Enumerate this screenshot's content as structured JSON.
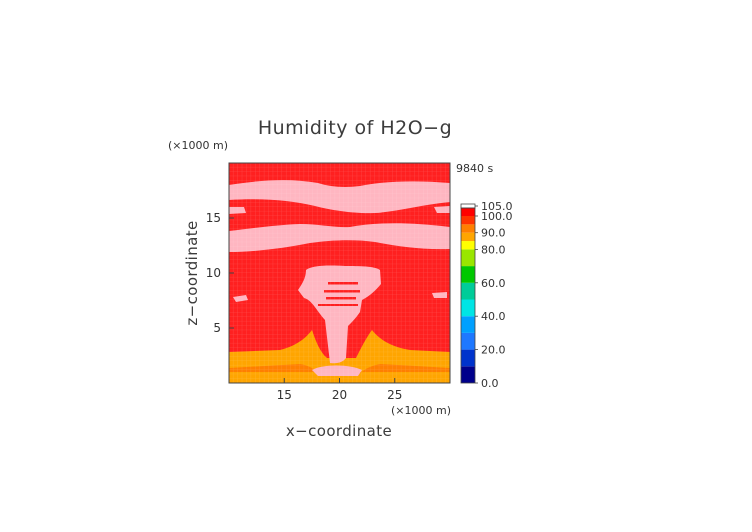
{
  "chart_data": {
    "type": "heatmap",
    "title": "Humidity of H2O−g",
    "time_label": "9840 s",
    "xlabel": "x−coordinate",
    "ylabel": "z−coordinate",
    "x_unit": "(×1000 m)",
    "y_unit": "(×1000 m)",
    "xlim": [
      10,
      30
    ],
    "ylim": [
      0,
      20
    ],
    "x_ticks": [
      15,
      20,
      25
    ],
    "y_ticks": [
      5,
      10,
      15
    ],
    "colorbar": {
      "levels": [
        0,
        10,
        20,
        30,
        40,
        50,
        60,
        70,
        80,
        85,
        90,
        95,
        100,
        105
      ],
      "colors": [
        "#00008b",
        "#0033cc",
        "#1e78ff",
        "#00a0ff",
        "#00e5e5",
        "#00cc99",
        "#00c800",
        "#99e600",
        "#ffff00",
        "#ffa500",
        "#ff7f00",
        "#ff3300",
        "#ff0000",
        "#ffb6c1",
        "#ffffff"
      ],
      "labels": [
        "0.0",
        "20.0",
        "40.0",
        "60.0",
        "80.0",
        "90.0",
        "100.0",
        "105.0"
      ],
      "label_values": [
        0,
        20,
        40,
        60,
        80,
        90,
        100,
        105
      ]
    },
    "fields": {
      "background_value": 100,
      "region_colors": {
        "above_100": "#ffb6c1",
        "near_100": "#ff2020",
        "range_90_95": "#ff7f00",
        "range_80_90": "#ffa500"
      }
    }
  }
}
